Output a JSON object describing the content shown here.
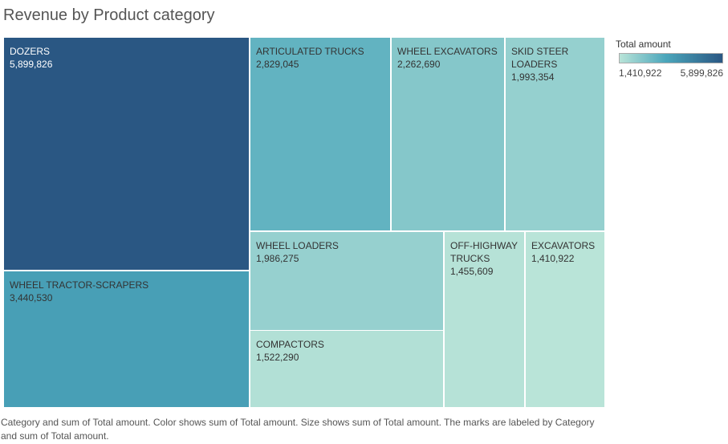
{
  "chart_data": {
    "type": "treemap",
    "title": "Revenue by Product category",
    "caption": "Category and sum of Total amount.  Color shows sum of Total amount.  Size shows sum of Total amount.  The marks are labeled by Category and sum of Total amount.",
    "legend": {
      "title": "Total amount",
      "min_label": "1,410,922",
      "max_label": "5,899,826",
      "min_value": 1410922,
      "max_value": 5899826,
      "color_low": "#b9e4d8",
      "color_mid": "#4ba6bb",
      "color_high": "#2a5783",
      "placement": "top-right"
    },
    "items": [
      {
        "name": "DOZERS",
        "value": 5899826,
        "label": "5,899,826"
      },
      {
        "name": "WHEEL TRACTOR-SCRAPERS",
        "value": 3440530,
        "label": "3,440,530"
      },
      {
        "name": "ARTICULATED TRUCKS",
        "value": 2829045,
        "label": "2,829,045"
      },
      {
        "name": "WHEEL EXCAVATORS",
        "value": 2262690,
        "label": "2,262,690"
      },
      {
        "name": "SKID STEER LOADERS",
        "value": 1993354,
        "label": "1,993,354"
      },
      {
        "name": "WHEEL LOADERS",
        "value": 1986275,
        "label": "1,986,275"
      },
      {
        "name": "COMPACTORS",
        "value": 1522290,
        "label": "1,522,290"
      },
      {
        "name": "OFF-HIGHWAY TRUCKS",
        "value": 1455609,
        "label": "1,455,609"
      },
      {
        "name": "EXCAVATORS",
        "value": 1410922,
        "label": "1,410,922"
      }
    ]
  }
}
